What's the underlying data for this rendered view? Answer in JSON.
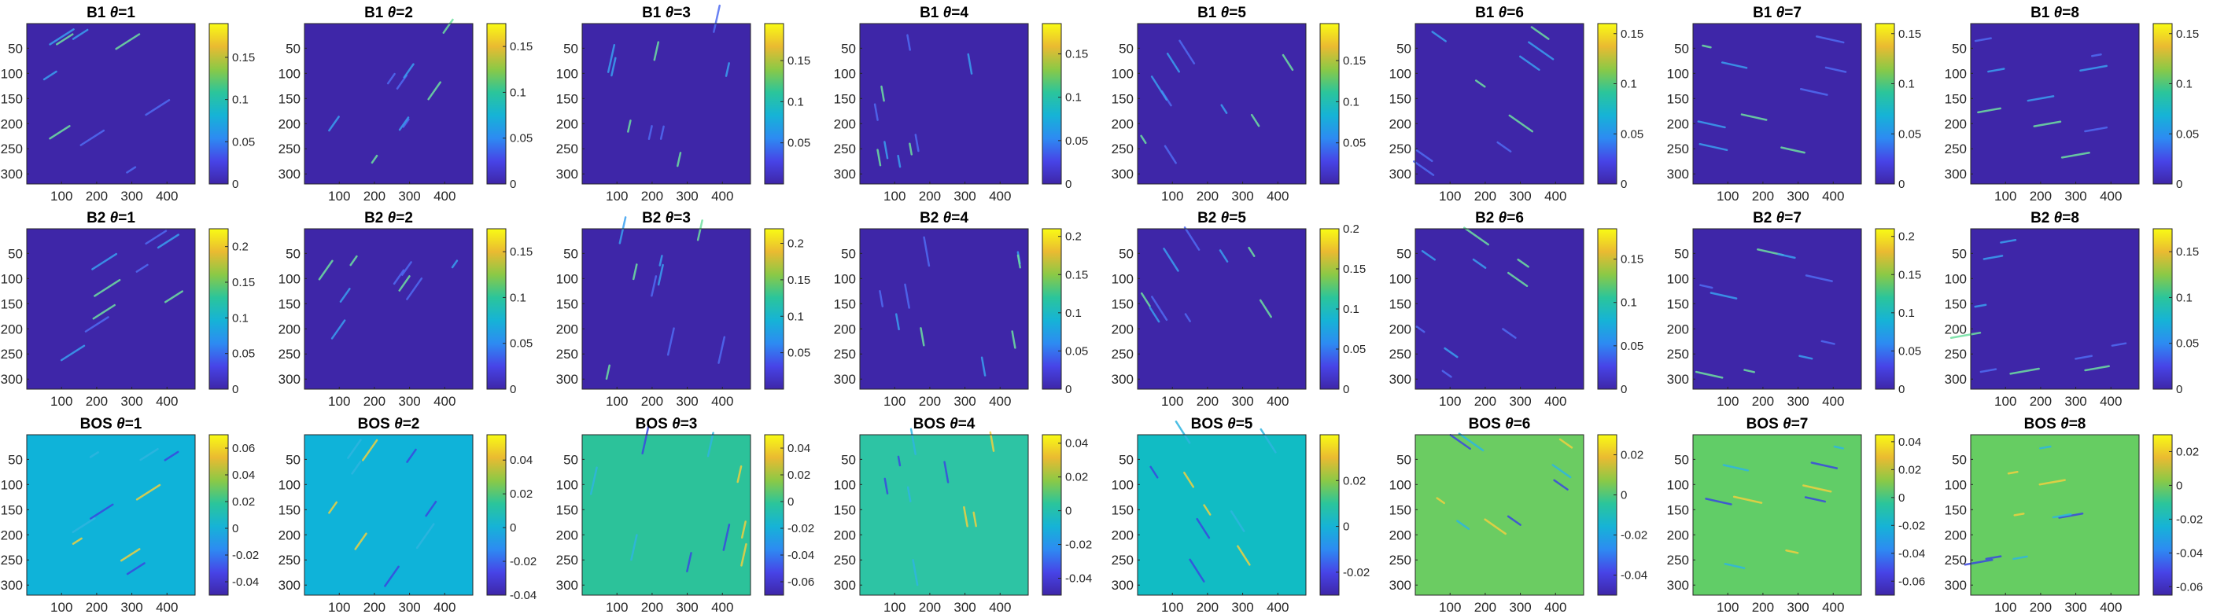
{
  "chart_data": {
    "type": "heatmap",
    "layout": {
      "rows": 3,
      "cols": 8
    },
    "x_ticks": [
      "100",
      "200",
      "300",
      "400"
    ],
    "y_ticks": [
      "50",
      "100",
      "150",
      "200",
      "250",
      "300"
    ],
    "xlim": [
      1,
      480
    ],
    "ylim": [
      1,
      320
    ],
    "colormap": "parula",
    "colormap_stops": [
      "#3e26a8",
      "#4744e7",
      "#2d8bf2",
      "#16b3d6",
      "#2bc59b",
      "#8bc946",
      "#eaba31",
      "#f9fb15"
    ],
    "panels": [
      {
        "row": 0,
        "col": 0,
        "label": "B1",
        "theta": "1",
        "bg": "#3e26a8",
        "clim": [
          0,
          0.19
        ],
        "cbar_ticks": [
          "0",
          "0.05",
          "0.1",
          "0.15"
        ]
      },
      {
        "row": 0,
        "col": 1,
        "label": "B1",
        "theta": "2",
        "bg": "#3e26a8",
        "clim": [
          0,
          0.175
        ],
        "cbar_ticks": [
          "0",
          "0.05",
          "0.1",
          "0.15"
        ]
      },
      {
        "row": 0,
        "col": 2,
        "label": "B1",
        "theta": "3",
        "bg": "#3e26a8",
        "clim": [
          0,
          0.195
        ],
        "cbar_ticks": [
          "0.05",
          "0.1",
          "0.15"
        ]
      },
      {
        "row": 0,
        "col": 3,
        "label": "B1",
        "theta": "4",
        "bg": "#3e26a8",
        "clim": [
          0,
          0.185
        ],
        "cbar_ticks": [
          "0",
          "0.05",
          "0.1",
          "0.15"
        ]
      },
      {
        "row": 0,
        "col": 4,
        "label": "B1",
        "theta": "5",
        "bg": "#3e26a8",
        "clim": [
          0,
          0.195
        ],
        "cbar_ticks": [
          "0.05",
          "0.1",
          "0.15"
        ]
      },
      {
        "row": 0,
        "col": 5,
        "label": "B1",
        "theta": "6",
        "bg": "#3e26a8",
        "clim": [
          0,
          0.16
        ],
        "cbar_ticks": [
          "0",
          "0.05",
          "0.1",
          "0.15"
        ]
      },
      {
        "row": 0,
        "col": 6,
        "label": "B1",
        "theta": "7",
        "bg": "#3e26a8",
        "clim": [
          0,
          0.16
        ],
        "cbar_ticks": [
          "0",
          "0.05",
          "0.1",
          "0.15"
        ]
      },
      {
        "row": 0,
        "col": 7,
        "label": "B1",
        "theta": "8",
        "bg": "#3e26a8",
        "clim": [
          0,
          0.16
        ],
        "cbar_ticks": [
          "0",
          "0.05",
          "0.1",
          "0.15"
        ]
      },
      {
        "row": 1,
        "col": 0,
        "label": "B2",
        "theta": "1",
        "bg": "#3e26a8",
        "clim": [
          0,
          0.225
        ],
        "cbar_ticks": [
          "0",
          "0.05",
          "0.1",
          "0.15",
          "0.2"
        ]
      },
      {
        "row": 1,
        "col": 1,
        "label": "B2",
        "theta": "2",
        "bg": "#3e26a8",
        "clim": [
          0,
          0.175
        ],
        "cbar_ticks": [
          "0",
          "0.05",
          "0.1",
          "0.15"
        ]
      },
      {
        "row": 1,
        "col": 2,
        "label": "B2",
        "theta": "3",
        "bg": "#3e26a8",
        "clim": [
          0,
          0.22
        ],
        "cbar_ticks": [
          "0.05",
          "0.1",
          "0.15",
          "0.2"
        ]
      },
      {
        "row": 1,
        "col": 3,
        "label": "B2",
        "theta": "4",
        "bg": "#3e26a8",
        "clim": [
          0,
          0.21
        ],
        "cbar_ticks": [
          "0",
          "0.05",
          "0.1",
          "0.15",
          "0.2"
        ]
      },
      {
        "row": 1,
        "col": 4,
        "label": "B2",
        "theta": "5",
        "bg": "#3e26a8",
        "clim": [
          0,
          0.2
        ],
        "cbar_ticks": [
          "0",
          "0.05",
          "0.1",
          "0.15",
          "0.2"
        ]
      },
      {
        "row": 1,
        "col": 5,
        "label": "B2",
        "theta": "6",
        "bg": "#3e26a8",
        "clim": [
          0,
          0.185
        ],
        "cbar_ticks": [
          "0",
          "0.05",
          "0.1",
          "0.15"
        ]
      },
      {
        "row": 1,
        "col": 6,
        "label": "B2",
        "theta": "7",
        "bg": "#3e26a8",
        "clim": [
          0,
          0.21
        ],
        "cbar_ticks": [
          "0",
          "0.05",
          "0.1",
          "0.15",
          "0.2"
        ]
      },
      {
        "row": 1,
        "col": 7,
        "label": "B2",
        "theta": "8",
        "bg": "#3e26a8",
        "clim": [
          0,
          0.175
        ],
        "cbar_ticks": [
          "0",
          "0.05",
          "0.1",
          "0.15"
        ]
      },
      {
        "row": 2,
        "col": 0,
        "label": "BOS",
        "theta": "1",
        "bg": "#0fb3d9",
        "clim": [
          -0.05,
          0.07
        ],
        "cbar_ticks": [
          "-0.04",
          "-0.02",
          "0",
          "0.02",
          "0.04",
          "0.06"
        ]
      },
      {
        "row": 2,
        "col": 1,
        "label": "BOS",
        "theta": "2",
        "bg": "#0fb3d9",
        "clim": [
          -0.04,
          0.055
        ],
        "cbar_ticks": [
          "-0.04",
          "-0.02",
          "0",
          "0.02",
          "0.04"
        ]
      },
      {
        "row": 2,
        "col": 2,
        "label": "BOS",
        "theta": "3",
        "bg": "#2cc29a",
        "clim": [
          -0.07,
          0.05
        ],
        "cbar_ticks": [
          "-0.06",
          "-0.04",
          "-0.02",
          "0",
          "0.02",
          "0.04"
        ]
      },
      {
        "row": 2,
        "col": 3,
        "label": "BOS",
        "theta": "4",
        "bg": "#2dc4a4",
        "clim": [
          -0.05,
          0.045
        ],
        "cbar_ticks": [
          "-0.04",
          "-0.02",
          "0",
          "0.02",
          "0.04"
        ]
      },
      {
        "row": 2,
        "col": 4,
        "label": "BOS",
        "theta": "5",
        "bg": "#11bcc4",
        "clim": [
          -0.03,
          0.04
        ],
        "cbar_ticks": [
          "-0.02",
          "0",
          "0.02"
        ]
      },
      {
        "row": 2,
        "col": 5,
        "label": "BOS",
        "theta": "6",
        "bg": "#6bcc62",
        "clim": [
          -0.05,
          0.03
        ],
        "cbar_ticks": [
          "-0.04",
          "-0.02",
          "0",
          "0.02"
        ]
      },
      {
        "row": 2,
        "col": 6,
        "label": "BOS",
        "theta": "7",
        "bg": "#61cd67",
        "clim": [
          -0.07,
          0.045
        ],
        "cbar_ticks": [
          "-0.06",
          "-0.04",
          "-0.02",
          "0",
          "0.02",
          "0.04"
        ]
      },
      {
        "row": 2,
        "col": 7,
        "label": "BOS",
        "theta": "8",
        "bg": "#66cd62",
        "clim": [
          -0.065,
          0.03
        ],
        "cbar_ticks": [
          "-0.06",
          "-0.04",
          "-0.02",
          "0",
          "0.02"
        ]
      }
    ]
  }
}
